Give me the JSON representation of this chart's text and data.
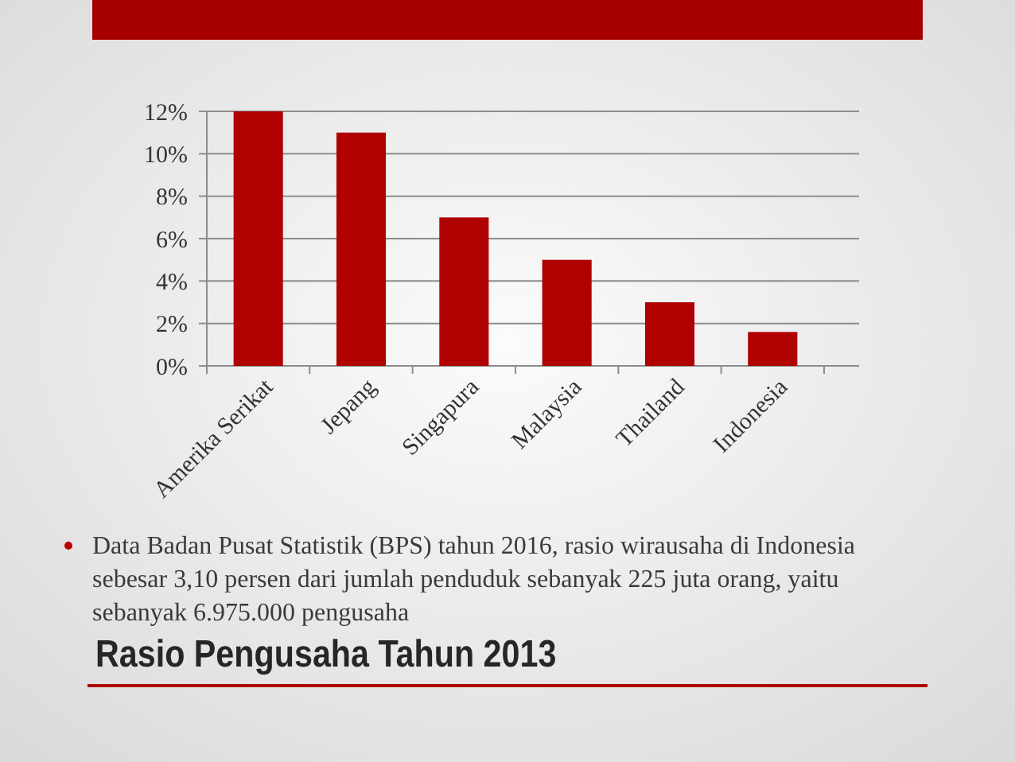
{
  "chart_data": {
    "type": "bar",
    "title": "Rasio Pengusaha Tahun 2013",
    "categories": [
      "Amerika Serikat",
      "Jepang",
      "Singapura",
      "Malaysia",
      "Thailand",
      "Indonesia"
    ],
    "values": [
      12,
      11,
      7,
      5,
      3,
      1.6
    ],
    "color": "#b00000",
    "ylim": [
      0,
      12
    ],
    "yticks": [
      {
        "value": 0,
        "label": "0%"
      },
      {
        "value": 2,
        "label": "2%"
      },
      {
        "value": 4,
        "label": "4%"
      },
      {
        "value": 6,
        "label": "6%"
      },
      {
        "value": 8,
        "label": "8%"
      },
      {
        "value": 10,
        "label": "10%"
      },
      {
        "value": 12,
        "label": "12%"
      }
    ],
    "grid": true,
    "annotations": [
      "Data Badan Pusat Statistik (BPS) tahun 2016, rasio wirausaha di Indonesia sebesar 3,10 persen dari jumlah penduduk sebanyak 225 juta orang, yaitu sebanyak 6.975.000 pengusaha"
    ]
  }
}
